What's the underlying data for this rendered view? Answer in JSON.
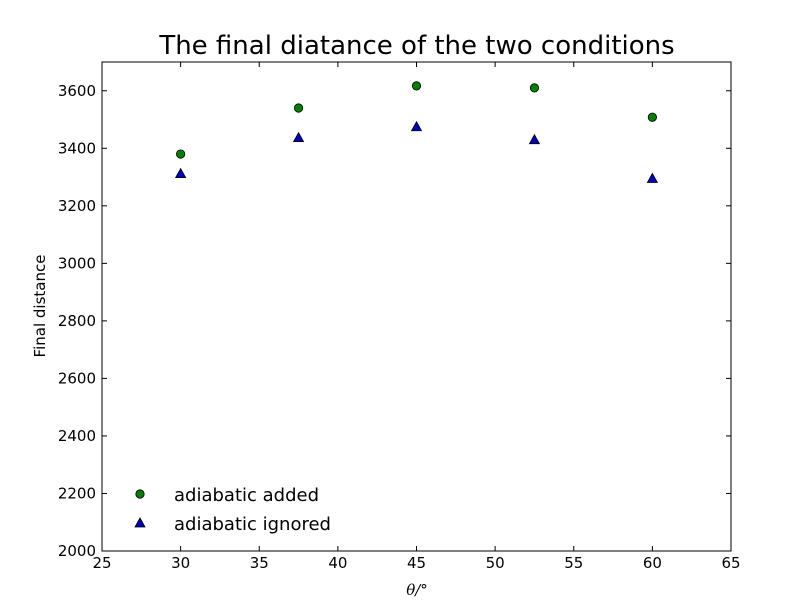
{
  "chart_data": {
    "type": "scatter",
    "title": "The final diatance of the two conditions",
    "xlabel": "θ/°",
    "ylabel": "Final distance",
    "xlim": [
      25,
      65
    ],
    "ylim": [
      2000,
      3700
    ],
    "xticks": [
      25,
      30,
      35,
      40,
      45,
      50,
      55,
      60,
      65
    ],
    "yticks": [
      2000,
      2200,
      2400,
      2600,
      2800,
      3000,
      3200,
      3400,
      3600
    ],
    "grid": false,
    "legend_position": "lower-left",
    "series": [
      {
        "name": "adiabatic added",
        "marker": "circle",
        "color": "#008000",
        "x": [
          30,
          37.5,
          45,
          52.5,
          60
        ],
        "y": [
          3380,
          3540,
          3617,
          3610,
          3508
        ]
      },
      {
        "name": "adiabatic ignored",
        "marker": "triangle",
        "color": "#0000bf",
        "x": [
          30,
          37.5,
          45,
          52.5,
          60
        ],
        "y": [
          3312,
          3437,
          3475,
          3430,
          3295
        ]
      }
    ]
  }
}
